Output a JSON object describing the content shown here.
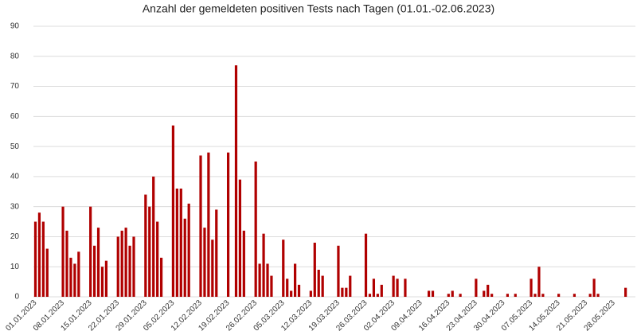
{
  "chart_data": {
    "type": "bar",
    "title": "Anzahl der gemeldeten positiven Tests nach Tagen (01.01.-02.06.2023)",
    "categories": [
      "01.01.2023",
      null,
      null,
      null,
      null,
      null,
      null,
      "08.01.2023",
      null,
      null,
      null,
      null,
      null,
      null,
      "15.01.2023",
      null,
      null,
      null,
      null,
      null,
      null,
      "22.01.2023",
      null,
      null,
      null,
      null,
      null,
      null,
      "29.01.2023",
      null,
      null,
      null,
      null,
      null,
      null,
      "05.02.2023",
      null,
      null,
      null,
      null,
      null,
      null,
      "12.02.2023",
      null,
      null,
      null,
      null,
      null,
      null,
      "19.02.2023",
      null,
      null,
      null,
      null,
      null,
      null,
      "26.02.2023",
      null,
      null,
      null,
      null,
      null,
      null,
      "05.03.2023",
      null,
      null,
      null,
      null,
      null,
      null,
      "12.03.2023",
      null,
      null,
      null,
      null,
      null,
      null,
      "19.03.2023",
      null,
      null,
      null,
      null,
      null,
      null,
      "26.03.2023",
      null,
      null,
      null,
      null,
      null,
      null,
      "02.04.2023",
      null,
      null,
      null,
      null,
      null,
      null,
      "09.04.2023",
      null,
      null,
      null,
      null,
      null,
      null,
      "16.04.2023",
      null,
      null,
      null,
      null,
      null,
      null,
      "23.04.2023",
      null,
      null,
      null,
      null,
      null,
      null,
      "30.04.2023",
      null,
      null,
      null,
      null,
      null,
      null,
      "07.05.2023",
      null,
      null,
      null,
      null,
      null,
      null,
      "14.05.2023",
      null,
      null,
      null,
      null,
      null,
      null,
      "21.05.2023",
      null,
      null,
      null,
      null,
      null,
      null,
      "28.05.2023",
      null,
      null,
      null,
      null,
      null
    ],
    "values": [
      25,
      28,
      25,
      16,
      0,
      0,
      0,
      30,
      22,
      13,
      11,
      15,
      0,
      0,
      30,
      17,
      23,
      10,
      12,
      0,
      0,
      20,
      22,
      23,
      17,
      20,
      0,
      0,
      34,
      30,
      40,
      25,
      13,
      0,
      0,
      57,
      36,
      36,
      26,
      31,
      0,
      0,
      47,
      23,
      48,
      19,
      29,
      0,
      0,
      48,
      0,
      77,
      39,
      22,
      0,
      0,
      45,
      11,
      21,
      11,
      7,
      0,
      0,
      19,
      6,
      2,
      11,
      4,
      0,
      0,
      2,
      18,
      9,
      7,
      0,
      0,
      0,
      17,
      3,
      3,
      7,
      0,
      0,
      0,
      21,
      1,
      6,
      1,
      4,
      0,
      0,
      7,
      6,
      0,
      6,
      0,
      0,
      0,
      0,
      0,
      2,
      2,
      0,
      0,
      0,
      1,
      2,
      0,
      1,
      0,
      0,
      0,
      6,
      0,
      2,
      4,
      1,
      0,
      0,
      0,
      1,
      0,
      1,
      0,
      0,
      0,
      6,
      1,
      10,
      1,
      0,
      0,
      0,
      1,
      0,
      0,
      0,
      1,
      0,
      0,
      0,
      1,
      6,
      1,
      0,
      0,
      0,
      0,
      0,
      0,
      3,
      0,
      0
    ],
    "color": "#b00000",
    "ylim": [
      0,
      90
    ],
    "yticks": [
      0,
      10,
      20,
      30,
      40,
      50,
      60,
      70,
      80,
      90
    ],
    "grid": true
  }
}
